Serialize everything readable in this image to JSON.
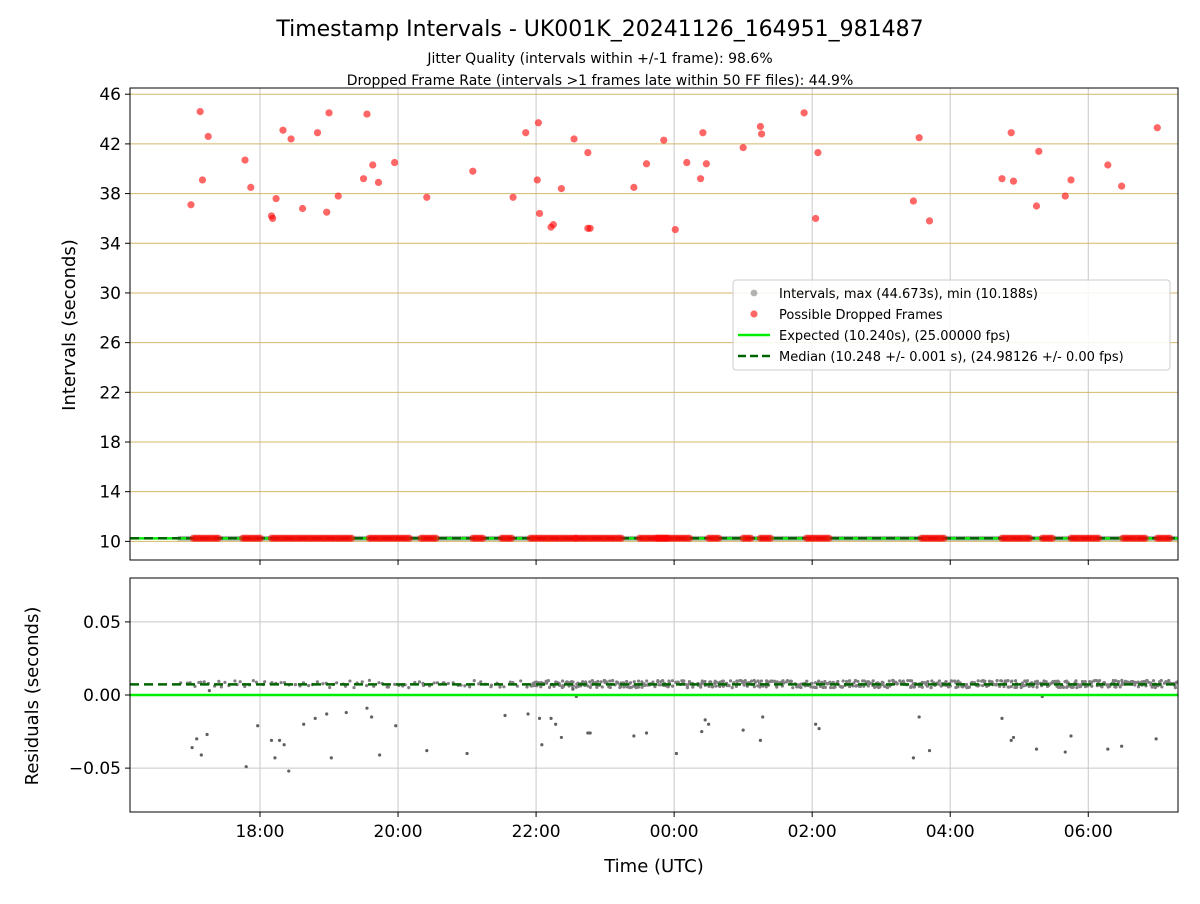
{
  "figure": {
    "title": "Timestamp Intervals - UK001K_20241126_164951_981487",
    "subtitle_1": "Jitter Quality (intervals within +/-1 frame): 98.6%",
    "subtitle_2": "Dropped Frame Rate (intervals >1 frames late within 50 FF files): 44.9%",
    "xlabel": "Time (UTC)"
  },
  "colors": {
    "dropped": "#ff0000",
    "intervals": "#808080",
    "expected": "#00ee00",
    "median": "#006400",
    "grid_h": "#d4b86a",
    "grid_v": "#c8c8c8"
  },
  "chart_data": [
    {
      "type": "scatter",
      "panel": "top",
      "ylabel": "Intervals (seconds)",
      "ylim": [
        8.5,
        46.5
      ],
      "xlim": [
        "16:07",
        "07:18"
      ],
      "x_ticks": [
        "18:00",
        "20:00",
        "22:00",
        "00:00",
        "02:00",
        "04:00",
        "06:00"
      ],
      "y_ticks": [
        10,
        14,
        18,
        22,
        26,
        30,
        34,
        38,
        42,
        46
      ],
      "grid": true,
      "legend_position": "center-right",
      "legend": [
        "Intervals, max (44.673s), min (10.188s)",
        "Possible Dropped Frames",
        "Expected (10.240s), (25.00000 fps)",
        "Median (10.248 +/- 0.001 s), (24.98126 +/- 0.00 fps)"
      ],
      "lines": [
        {
          "name": "Expected (10.240s), (25.00000 fps)",
          "y": 10.24,
          "style": "solid"
        },
        {
          "name": "Median (10.248 +/- 0.001 s), (24.98126 +/- 0.00 fps)",
          "y": 10.248,
          "style": "dashed"
        }
      ],
      "series": [
        {
          "name": "Intervals, max (44.673s), min (10.188s)",
          "baseline_range": [
            "16:50",
            "07:18"
          ],
          "baseline_y": 10.248
        },
        {
          "name": "Possible Dropped Frames",
          "baseline_y": 10.25,
          "baseline_runs": [
            [
              "17:02",
              "17:24"
            ],
            [
              "17:45",
              "18:02"
            ],
            [
              "18:10",
              "19:20"
            ],
            [
              "19:35",
              "20:10"
            ],
            [
              "20:20",
              "20:35"
            ],
            [
              "21:05",
              "21:15"
            ],
            [
              "21:30",
              "21:40"
            ],
            [
              "21:55",
              "22:35"
            ],
            [
              "22:35",
              "23:15"
            ],
            [
              "23:30",
              "23:55"
            ],
            [
              "23:45",
              "24:15"
            ],
            [
              "24:30",
              "24:40"
            ],
            [
              "25:00",
              "25:08"
            ],
            [
              "25:15",
              "25:25"
            ],
            [
              "25:55",
              "26:15"
            ],
            [
              "27:35",
              "27:55"
            ],
            [
              "28:45",
              "29:10"
            ],
            [
              "29:20",
              "29:30"
            ],
            [
              "29:45",
              "30:10"
            ],
            [
              "30:30",
              "30:50"
            ],
            [
              "31:00",
              "31:12"
            ]
          ],
          "points": [
            [
              "17:00",
              37.1
            ],
            [
              "17:08",
              44.6
            ],
            [
              "17:10",
              39.1
            ],
            [
              "17:15",
              42.6
            ],
            [
              "17:47",
              40.7
            ],
            [
              "17:52",
              38.5
            ],
            [
              "18:10",
              36.2
            ],
            [
              "18:11",
              36.0
            ],
            [
              "18:14",
              37.6
            ],
            [
              "18:20",
              43.1
            ],
            [
              "18:27",
              42.4
            ],
            [
              "18:37",
              36.8
            ],
            [
              "18:50",
              42.9
            ],
            [
              "18:58",
              36.5
            ],
            [
              "19:00",
              44.5
            ],
            [
              "19:08",
              37.8
            ],
            [
              "19:30",
              39.2
            ],
            [
              "19:33",
              44.4
            ],
            [
              "19:38",
              40.3
            ],
            [
              "19:43",
              38.9
            ],
            [
              "19:57",
              40.5
            ],
            [
              "20:25",
              37.7
            ],
            [
              "21:05",
              39.8
            ],
            [
              "21:40",
              37.7
            ],
            [
              "21:51",
              42.9
            ],
            [
              "22:01",
              39.1
            ],
            [
              "22:03",
              36.4
            ],
            [
              "22:02",
              43.7
            ],
            [
              "22:13",
              35.3
            ],
            [
              "22:15",
              35.5
            ],
            [
              "22:22",
              38.4
            ],
            [
              "22:33",
              42.4
            ],
            [
              "22:45",
              41.3
            ],
            [
              "22:45",
              35.2
            ],
            [
              "22:47",
              35.2
            ],
            [
              "23:25",
              38.5
            ],
            [
              "23:36",
              40.4
            ],
            [
              "23:51",
              42.3
            ],
            [
              "24:01",
              35.1
            ],
            [
              "24:11",
              40.5
            ],
            [
              "24:23",
              39.2
            ],
            [
              "24:25",
              42.9
            ],
            [
              "24:28",
              40.4
            ],
            [
              "25:00",
              41.7
            ],
            [
              "25:15",
              43.4
            ],
            [
              "25:16",
              42.8
            ],
            [
              "25:53",
              44.5
            ],
            [
              "26:03",
              36.0
            ],
            [
              "26:05",
              41.3
            ],
            [
              "27:28",
              37.4
            ],
            [
              "27:33",
              42.5
            ],
            [
              "27:42",
              35.8
            ],
            [
              "28:45",
              39.2
            ],
            [
              "28:53",
              42.9
            ],
            [
              "28:55",
              39.0
            ],
            [
              "29:15",
              37.0
            ],
            [
              "29:17",
              41.4
            ],
            [
              "29:40",
              37.8
            ],
            [
              "29:45",
              39.1
            ],
            [
              "30:17",
              40.3
            ],
            [
              "30:29",
              38.6
            ],
            [
              "31:00",
              43.3
            ]
          ]
        }
      ]
    },
    {
      "type": "scatter",
      "panel": "bottom",
      "ylabel": "Residuals (seconds)",
      "ylim": [
        -0.08,
        0.08
      ],
      "xlim": [
        "16:07",
        "07:18"
      ],
      "x_ticks": [
        "18:00",
        "20:00",
        "22:00",
        "00:00",
        "02:00",
        "04:00",
        "06:00"
      ],
      "y_ticks": [
        0.05,
        0.0,
        -0.05
      ],
      "y_tick_labels": [
        "0.05",
        "0.00",
        "−0.05"
      ],
      "grid": true,
      "lines": [
        {
          "name": "Expected",
          "y": 0.0,
          "style": "solid"
        },
        {
          "name": "Median",
          "y": 0.0073,
          "style": "dashed"
        }
      ],
      "series": [
        {
          "name": "Residuals",
          "cluster_y_center": 0.0075,
          "cluster_y_spread": 0.0025,
          "cluster_sparse_range": [
            "16:50",
            "21:55"
          ],
          "cluster_dense_range": [
            "21:55",
            "31:18"
          ],
          "outliers": [
            [
              "17:01",
              -0.036
            ],
            [
              "17:05",
              -0.03
            ],
            [
              "17:09",
              -0.041
            ],
            [
              "17:14",
              -0.027
            ],
            [
              "17:16",
              0.003
            ],
            [
              "17:48",
              -0.049
            ],
            [
              "17:58",
              -0.021
            ],
            [
              "18:10",
              -0.031
            ],
            [
              "18:13",
              -0.043
            ],
            [
              "18:17",
              -0.031
            ],
            [
              "18:21",
              -0.034
            ],
            [
              "18:25",
              -0.052
            ],
            [
              "18:38",
              -0.02
            ],
            [
              "18:48",
              -0.016
            ],
            [
              "18:58",
              -0.013
            ],
            [
              "19:02",
              -0.043
            ],
            [
              "19:15",
              -0.012
            ],
            [
              "19:33",
              -0.009
            ],
            [
              "19:37",
              -0.015
            ],
            [
              "19:44",
              -0.041
            ],
            [
              "19:58",
              -0.021
            ],
            [
              "20:25",
              -0.038
            ],
            [
              "21:00",
              -0.04
            ],
            [
              "21:33",
              -0.014
            ],
            [
              "21:53",
              -0.013
            ],
            [
              "22:03",
              -0.016
            ],
            [
              "22:05",
              -0.034
            ],
            [
              "22:13",
              -0.016
            ],
            [
              "22:17",
              -0.02
            ],
            [
              "22:22",
              -0.029
            ],
            [
              "22:32",
              0.004
            ],
            [
              "22:35",
              -0.001
            ],
            [
              "22:45",
              -0.026
            ],
            [
              "22:47",
              -0.026
            ],
            [
              "23:25",
              -0.028
            ],
            [
              "23:36",
              -0.026
            ],
            [
              "24:02",
              -0.04
            ],
            [
              "24:24",
              -0.025
            ],
            [
              "24:27",
              -0.017
            ],
            [
              "24:30",
              -0.02
            ],
            [
              "25:00",
              -0.024
            ],
            [
              "25:15",
              -0.031
            ],
            [
              "25:17",
              -0.015
            ],
            [
              "26:03",
              -0.02
            ],
            [
              "26:06",
              -0.023
            ],
            [
              "27:28",
              -0.043
            ],
            [
              "27:33",
              -0.015
            ],
            [
              "27:42",
              -0.038
            ],
            [
              "28:45",
              -0.016
            ],
            [
              "28:53",
              -0.031
            ],
            [
              "28:55",
              -0.029
            ],
            [
              "29:15",
              -0.037
            ],
            [
              "29:20",
              -0.001
            ],
            [
              "29:40",
              -0.039
            ],
            [
              "29:45",
              -0.028
            ],
            [
              "30:17",
              -0.037
            ],
            [
              "30:29",
              -0.035
            ],
            [
              "30:59",
              -0.03
            ]
          ]
        }
      ]
    }
  ]
}
